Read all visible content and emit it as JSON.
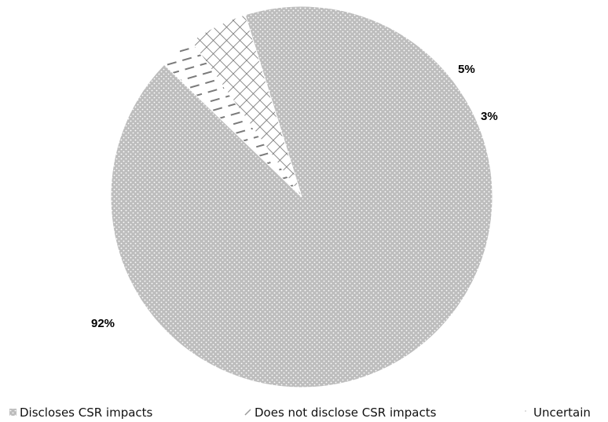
{
  "chart_data": {
    "type": "pie",
    "title": "",
    "legend_position": "bottom",
    "slices": [
      {
        "name": "Discloses CSR impacts",
        "value": 92,
        "label": "92%",
        "fill": "#b9b9b9",
        "pattern": "dotted-grid"
      },
      {
        "name": "Does not disclose CSR impacts",
        "value": 3,
        "label": "3%",
        "fill": "#ffffff",
        "pattern": "dashes"
      },
      {
        "name": "Uncertain",
        "value": 5,
        "label": "5%",
        "fill": "#ffffff",
        "pattern": "crosshatch"
      }
    ]
  }
}
